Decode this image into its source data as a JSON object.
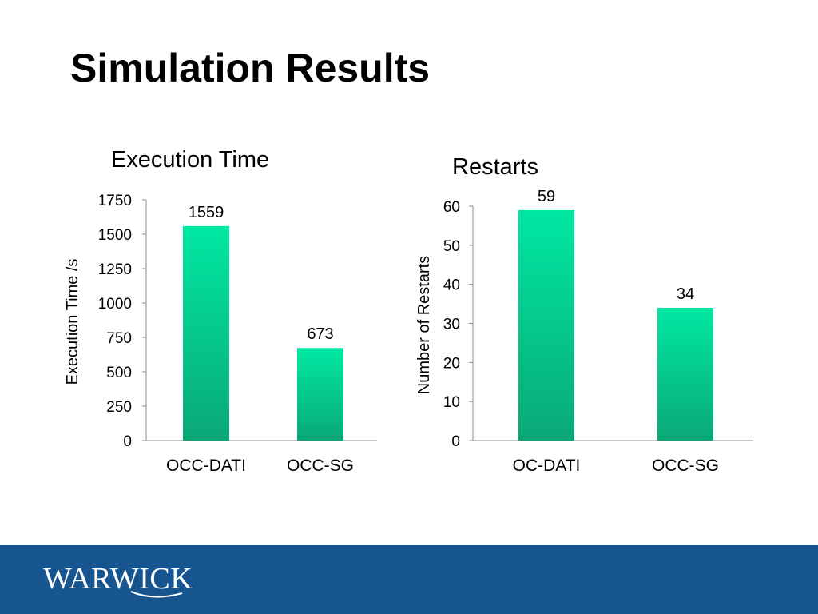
{
  "slide": {
    "title": "Simulation Results"
  },
  "footer": {
    "logo_text": "WARWICK",
    "band_color": "#175591"
  },
  "colors": {
    "bar_top": "#00e8a2",
    "bar_bottom": "#0aa877",
    "axis": "#8c8c8c"
  },
  "chart_data": [
    {
      "type": "bar",
      "title": "Execution Time",
      "xlabel": "",
      "ylabel": "Execution Time /s",
      "categories": [
        "OCC-DATI",
        "OCC-SG"
      ],
      "values": [
        1559,
        673
      ],
      "data_labels": [
        "1559",
        "673"
      ],
      "ylim": [
        0,
        1750
      ],
      "yticks": [
        0,
        250,
        500,
        750,
        1000,
        1250,
        1500,
        1750
      ],
      "grid": false,
      "legend": "none"
    },
    {
      "type": "bar",
      "title": "Restarts",
      "xlabel": "",
      "ylabel": "Number of Restarts",
      "categories": [
        "OC-DATI",
        "OCC-SG"
      ],
      "values": [
        59,
        34
      ],
      "data_labels": [
        "59",
        "34"
      ],
      "ylim": [
        0,
        60
      ],
      "yticks": [
        0,
        10,
        20,
        30,
        40,
        50,
        60
      ],
      "grid": false,
      "legend": "none"
    }
  ]
}
